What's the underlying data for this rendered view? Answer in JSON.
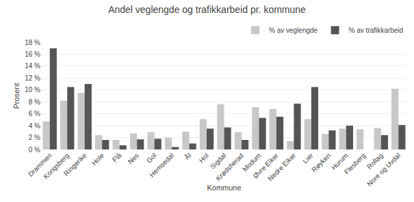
{
  "chart_data": {
    "type": "bar",
    "title": "Andel veglengde og trafikkarbeid pr. kommune",
    "xlabel": "Kommune",
    "ylabel": "Prosent",
    "categories": [
      "Drammen",
      "Kongsberg",
      "Ringerike",
      "Hole",
      "Flå",
      "Nes",
      "Gol",
      "Hemsedal",
      "Ål",
      "Hol",
      "Sigdal",
      "Krødsherad",
      "Modum",
      "Øvre Eiker",
      "Nedre Eiker",
      "Lier",
      "Røyken",
      "Hurum",
      "Flesberg",
      "Rollag",
      "Nore og Uvdal"
    ],
    "series": [
      {
        "name": "% av veglengde",
        "color": "#c8c8c8",
        "values": [
          4.7,
          8.2,
          9.5,
          2.4,
          1.6,
          2.7,
          2.9,
          2.0,
          3.0,
          5.1,
          7.6,
          2.9,
          7.1,
          6.8,
          1.4,
          5.1,
          2.6,
          3.5,
          3.4,
          3.6,
          10.2
        ]
      },
      {
        "name": "% av trafikkarbeid",
        "color": "#555555",
        "values": [
          17.0,
          10.5,
          11.0,
          1.6,
          0.7,
          1.7,
          1.8,
          0.4,
          1.0,
          3.5,
          3.7,
          1.6,
          5.3,
          5.5,
          7.7,
          10.5,
          3.2,
          4.0,
          0.0,
          2.4,
          4.1
        ]
      }
    ],
    "ylim": [
      0,
      18
    ],
    "yticks": [
      {
        "value": 0,
        "label": "0 %"
      },
      {
        "value": 2,
        "label": "2 %"
      },
      {
        "value": 4,
        "label": "4 %"
      },
      {
        "value": 6,
        "label": "6 %"
      },
      {
        "value": 8,
        "label": "8 %"
      },
      {
        "value": 10,
        "label": "10 %"
      },
      {
        "value": 12,
        "label": "12 %"
      },
      {
        "value": 14,
        "label": "14 %"
      },
      {
        "value": 16,
        "label": "16 %"
      },
      {
        "value": 18,
        "label": "18 %"
      }
    ],
    "grid": true,
    "legend": "upper right"
  }
}
